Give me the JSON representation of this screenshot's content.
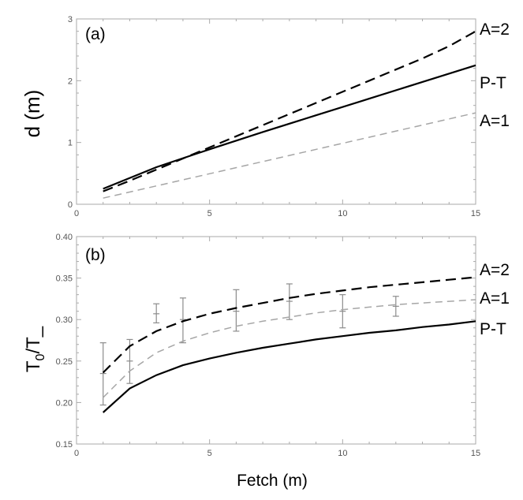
{
  "chart_data": [
    {
      "panel": "(a)",
      "type": "line",
      "xlabel": "",
      "ylabel": "d (m)",
      "xlim": [
        0,
        15
      ],
      "ylim": [
        0,
        3
      ],
      "xticks": [
        "0",
        "5",
        "10",
        "15"
      ],
      "yticks": [
        "0",
        "1",
        "2",
        "3"
      ],
      "series": [
        {
          "name": "A=2",
          "style": "dashed",
          "color": "#000000",
          "x": [
            1,
            2,
            3,
            4,
            5,
            6,
            7,
            8,
            9,
            10,
            11,
            12,
            13,
            14,
            15
          ],
          "y": [
            0.21,
            0.38,
            0.56,
            0.74,
            0.92,
            1.1,
            1.28,
            1.46,
            1.64,
            1.82,
            2.0,
            2.18,
            2.36,
            2.56,
            2.8
          ]
        },
        {
          "name": "P-T",
          "style": "solid",
          "color": "#000000",
          "x": [
            1,
            3,
            5,
            7,
            9,
            11,
            13,
            15
          ],
          "y": [
            0.25,
            0.6,
            0.89,
            1.17,
            1.44,
            1.71,
            1.98,
            2.25
          ]
        },
        {
          "name": "A=1",
          "style": "dashed",
          "color": "#a6a6a6",
          "x": [
            1,
            15
          ],
          "y": [
            0.1,
            1.48
          ]
        }
      ]
    },
    {
      "panel": "(b)",
      "type": "line",
      "xlabel": "Fetch (m)",
      "ylabel": "T0/T_",
      "ylabel_main": "T",
      "ylabel_sub": "0",
      "ylabel_tail": "/T_",
      "xlim": [
        0,
        15
      ],
      "ylim": [
        0.15,
        0.4
      ],
      "xticks": [
        "0",
        "5",
        "10",
        "15"
      ],
      "yticks": [
        "0.15",
        "0.20",
        "0.25",
        "0.30",
        "0.35",
        "0.40"
      ],
      "series": [
        {
          "name": "A=2",
          "style": "dashed",
          "color": "#000000",
          "x": [
            1,
            2,
            3,
            4,
            5,
            6,
            7,
            8,
            9,
            10,
            11,
            12,
            13,
            14,
            15
          ],
          "y": [
            0.236,
            0.268,
            0.286,
            0.298,
            0.307,
            0.314,
            0.32,
            0.326,
            0.331,
            0.335,
            0.339,
            0.342,
            0.345,
            0.348,
            0.351
          ]
        },
        {
          "name": "A=1",
          "style": "dashed",
          "color": "#a6a6a6",
          "x": [
            1,
            2,
            3,
            4,
            5,
            6,
            7,
            8,
            9,
            10,
            11,
            12,
            13,
            14,
            15
          ],
          "y": [
            0.206,
            0.238,
            0.26,
            0.274,
            0.284,
            0.292,
            0.298,
            0.303,
            0.308,
            0.312,
            0.315,
            0.318,
            0.32,
            0.322,
            0.324
          ]
        },
        {
          "name": "P-T",
          "style": "solid",
          "color": "#000000",
          "x": [
            1,
            2,
            3,
            4,
            5,
            6,
            7,
            8,
            9,
            10,
            11,
            12,
            13,
            14,
            15
          ],
          "y": [
            0.188,
            0.217,
            0.233,
            0.245,
            0.253,
            0.26,
            0.266,
            0.271,
            0.276,
            0.28,
            0.284,
            0.287,
            0.291,
            0.294,
            0.298
          ]
        }
      ],
      "errorbars": {
        "color": "#8c8c8c",
        "x": [
          1,
          2,
          3,
          4,
          6,
          8,
          10,
          12
        ],
        "y": [
          0.235,
          0.25,
          0.307,
          0.3,
          0.31,
          0.322,
          0.31,
          0.316
        ],
        "low": [
          0.197,
          0.223,
          0.296,
          0.272,
          0.286,
          0.3,
          0.29,
          0.304
        ],
        "high": [
          0.272,
          0.276,
          0.319,
          0.326,
          0.336,
          0.343,
          0.33,
          0.328
        ]
      }
    }
  ]
}
